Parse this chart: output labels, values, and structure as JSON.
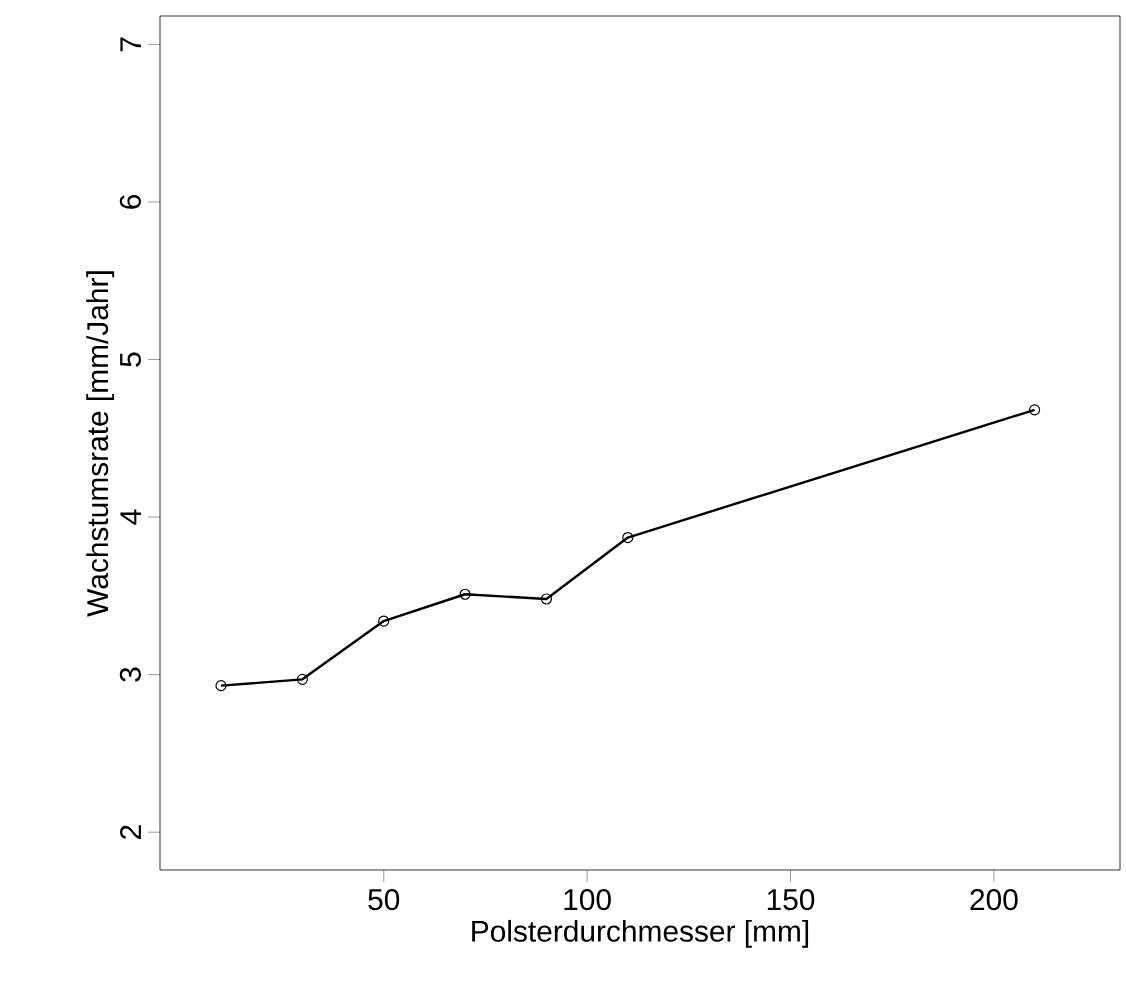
{
  "chart_data": {
    "type": "line",
    "xlabel": "Polsterdurchmesser [mm]",
    "ylabel": "Wachstumsrate [mm/Jahr]",
    "x": [
      10,
      30,
      50,
      70,
      90,
      110,
      210
    ],
    "values": [
      2.93,
      2.97,
      3.34,
      3.51,
      3.48,
      3.87,
      4.68
    ],
    "color": "#000000",
    "marker": "circle",
    "line_style": "solid",
    "grid": false,
    "xlim": [
      -5,
      231
    ],
    "ylim": [
      1.76,
      7.18
    ],
    "xticks": [
      50,
      100,
      150,
      200
    ],
    "yticks": [
      2,
      3,
      4,
      5,
      6,
      7
    ]
  }
}
